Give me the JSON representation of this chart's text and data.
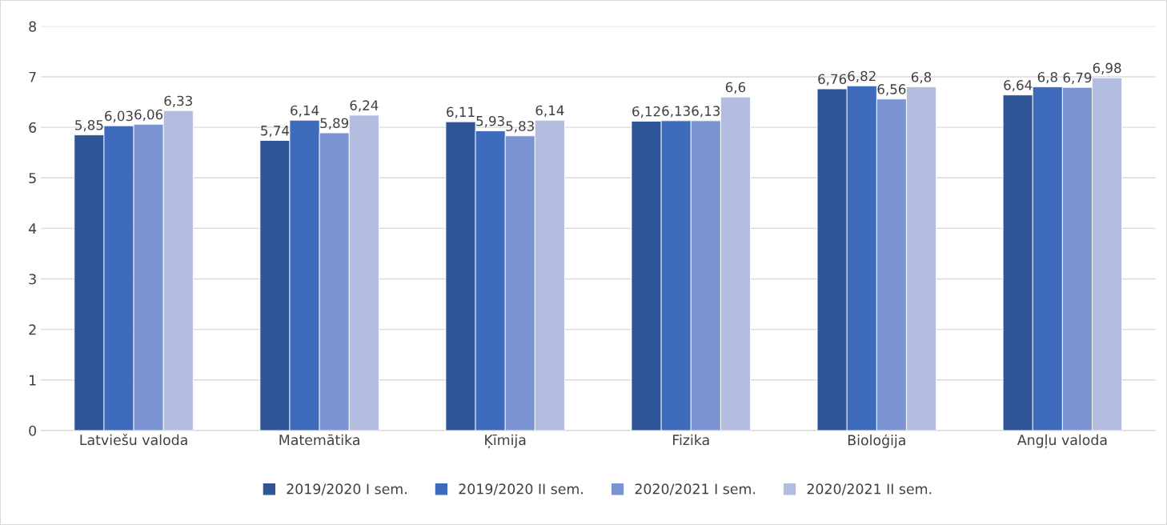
{
  "chart_data": {
    "type": "bar",
    "categories": [
      "Latviešu valoda",
      "Matemātika",
      "Ķīmija",
      "Fizika",
      "Bioloģija",
      "Angļu valoda"
    ],
    "series": [
      {
        "name": "2019/2020 I sem.",
        "color": "#2f5597",
        "values": [
          5.85,
          5.74,
          6.11,
          6.12,
          6.76,
          6.64
        ],
        "value_labels": [
          "5,85",
          "5,74",
          "6,11",
          "6,12",
          "6,76",
          "6,64"
        ]
      },
      {
        "name": "2019/2020 II sem.",
        "color": "#3e6bbb",
        "values": [
          6.03,
          6.14,
          5.93,
          6.13,
          6.82,
          6.8
        ],
        "value_labels": [
          "6,03",
          "6,14",
          "5,93",
          "6,13",
          "6,82",
          "6,8"
        ]
      },
      {
        "name": "2020/2021 I sem.",
        "color": "#7b93d0",
        "values": [
          6.06,
          5.89,
          5.83,
          6.13,
          6.56,
          6.79
        ],
        "value_labels": [
          "6,06",
          "5,89",
          "5,83",
          "6,13",
          "6,56",
          "6,79"
        ]
      },
      {
        "name": "2020/2021 II sem.",
        "color": "#b2bde0",
        "values": [
          6.33,
          6.24,
          6.14,
          6.6,
          6.8,
          6.98
        ],
        "value_labels": [
          "6,33",
          "6,24",
          "6,14",
          "6,6",
          "6,8",
          "6,98"
        ]
      }
    ],
    "ylim": [
      0,
      8
    ],
    "yticks": [
      0,
      1,
      2,
      3,
      4,
      5,
      6,
      7,
      8
    ],
    "grid": "y",
    "legend": "bottom"
  }
}
